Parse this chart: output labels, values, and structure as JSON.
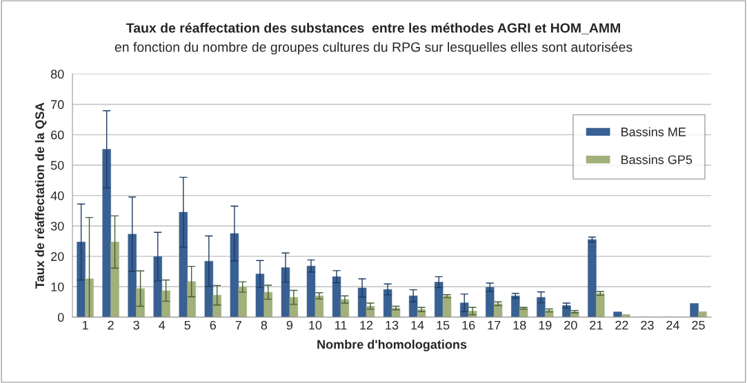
{
  "chart_data": {
    "type": "bar",
    "title": "Taux de réaffectation des substances  entre les méthodes AGRI et HOM_AMM",
    "subtitle": "en fonction du nombre de groupes cultures du RPG sur lesquelles elles sont autorisées",
    "xlabel": "Nombre d'homologations",
    "ylabel": "Taux de réaffectation de la QSA",
    "categories": [
      "1",
      "2",
      "3",
      "4",
      "5",
      "6",
      "7",
      "8",
      "9",
      "10",
      "11",
      "12",
      "13",
      "14",
      "15",
      "16",
      "17",
      "18",
      "19",
      "20",
      "21",
      "22",
      "23",
      "24",
      "25"
    ],
    "series": [
      {
        "name": "Bassins ME",
        "color": "#386092",
        "values": [
          24.7,
          55.2,
          27.3,
          19.9,
          34.5,
          18.4,
          27.5,
          14.2,
          16.3,
          16.8,
          13.3,
          9.6,
          9.1,
          7.0,
          11.5,
          4.7,
          9.8,
          7.0,
          6.5,
          3.8,
          25.5,
          1.7,
          0,
          0,
          4.5
        ],
        "errors": [
          12.5,
          12.7,
          12.2,
          8.0,
          11.5,
          8.3,
          9.0,
          4.4,
          4.8,
          2.0,
          2.0,
          3.0,
          1.8,
          2.0,
          1.8,
          2.9,
          1.4,
          0.8,
          1.8,
          0.8,
          0.8,
          null,
          null,
          null,
          null
        ]
      },
      {
        "name": "Bassins GP5",
        "color": "#a2b07c",
        "values": [
          12.6,
          24.7,
          9.4,
          8.7,
          11.7,
          7.2,
          9.9,
          8.2,
          6.5,
          7.0,
          5.8,
          3.6,
          3.0,
          2.5,
          6.9,
          2.0,
          4.4,
          2.9,
          2.2,
          1.8,
          7.8,
          0.9,
          0,
          0,
          1.8
        ],
        "errors": [
          20.2,
          8.6,
          5.8,
          3.5,
          5.0,
          3.2,
          1.7,
          2.3,
          2.3,
          1.0,
          1.2,
          1.0,
          0.6,
          0.7,
          0.5,
          1.2,
          0.6,
          0.3,
          0.5,
          0.4,
          0.6,
          null,
          null,
          null,
          null
        ]
      }
    ],
    "ylim": [
      0,
      80
    ],
    "yticks": [
      0,
      10,
      20,
      30,
      40,
      50,
      60,
      70,
      80
    ],
    "grid": "y",
    "legend": "right"
  }
}
